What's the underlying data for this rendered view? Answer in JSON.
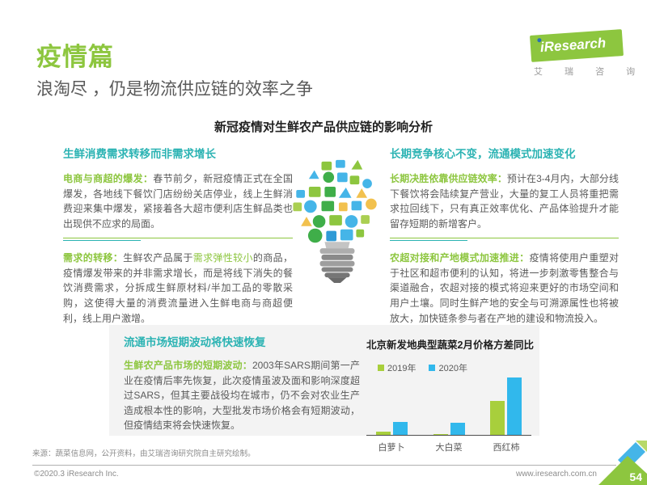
{
  "page": {
    "chapter_title": "疫情篇",
    "subtitle": "浪淘尽 ，仍是物流供应链的效率之争",
    "section_title": "新冠疫情对生鲜农产品供应链的影响分析",
    "source": "来源：蔬菜信息网，公开资料，由艾瑞咨询研究院自主研究绘制。",
    "copyright": "©2020.3 iResearch Inc.",
    "website": "www.iresearch.com.cn",
    "page_number": "54"
  },
  "logo": {
    "brand": "iResearch",
    "brand_cn": "艾 瑞 咨 询"
  },
  "left_column": {
    "header": "生鲜消费需求转移而非需求增长",
    "p1_lead": "电商与商超的爆发：",
    "p1_text": "春节前夕，新冠疫情正式在全国爆发，各地线下餐饮门店纷纷关店停业，线上生鲜消费迎来集中爆发，紧接着各大超市便利店生鲜品类也出现供不应求的局面。",
    "p2_lead": "需求的转移：",
    "p2_text_a": "生鲜农产品属于",
    "p2_highlight": "需求弹性较小",
    "p2_text_b": "的商品，疫情爆发带来的并非需求增长，而是将线下消失的餐饮消费需求，分拆成生鲜原材料/半加工品的零散采购，这使得大量的消费流量进入生鲜电商与商超便利，线上用户激增。"
  },
  "right_column": {
    "header": "长期竞争核心不变，流通模式加速变化",
    "p1_lead": "长期决胜依靠供应链效率：",
    "p1_text": "预计在3-4月内，大部分线下餐饮将会陆续复产营业，大量的复工人员将重把需求拉回线下，只有真正效率优化、产品体验提升才能留存短期的新增客户。",
    "p2_lead": "农超对接和产地模式加速推进：",
    "p2_text": "疫情将使用户重塑对于社区和超市便利的认知，将进一步刺激零售整合与渠道融合，农超对接的模式将迎来更好的市场空间和用户土壤。同时生鲜产地的安全与可溯源属性也将被放大，加快链条参与者在产地的建设和物流投入。"
  },
  "bottom_box": {
    "header": "流通市场短期波动将快速恢复",
    "lead": "生鲜农产品市场的短期波动：",
    "text": "2003年SARS期间第一产业在疫情后率先恢复，此次疫情虽波及面和影响深度超过SARS，但其主要战役均在城市，仍不会对农业生产造成根本性的影响，大型批发市场价格会有短期波动，但疫情结束将会快速恢复。"
  },
  "chart_data": {
    "type": "bar",
    "title": "北京新发地典型蔬菜2月价格方差同比",
    "categories": [
      "白萝卜",
      "大白菜",
      "西红柿"
    ],
    "series": [
      {
        "name": "2019年",
        "color": "#a8cf3c",
        "values": [
          4,
          1,
          41
        ]
      },
      {
        "name": "2020年",
        "color": "#31b8ec",
        "values": [
          16,
          15,
          69
        ]
      }
    ],
    "ylim": [
      0,
      72
    ],
    "legend_position": "top-left",
    "grid": false,
    "note_units": "relative variance (no axis labels shown)"
  },
  "colors": {
    "accent_green": "#8dc63f",
    "accent_teal": "#2bb3b3",
    "accent_blue": "#31b8ec",
    "body_text": "#5a5a5a",
    "panel_bg": "#f3f3f3"
  }
}
